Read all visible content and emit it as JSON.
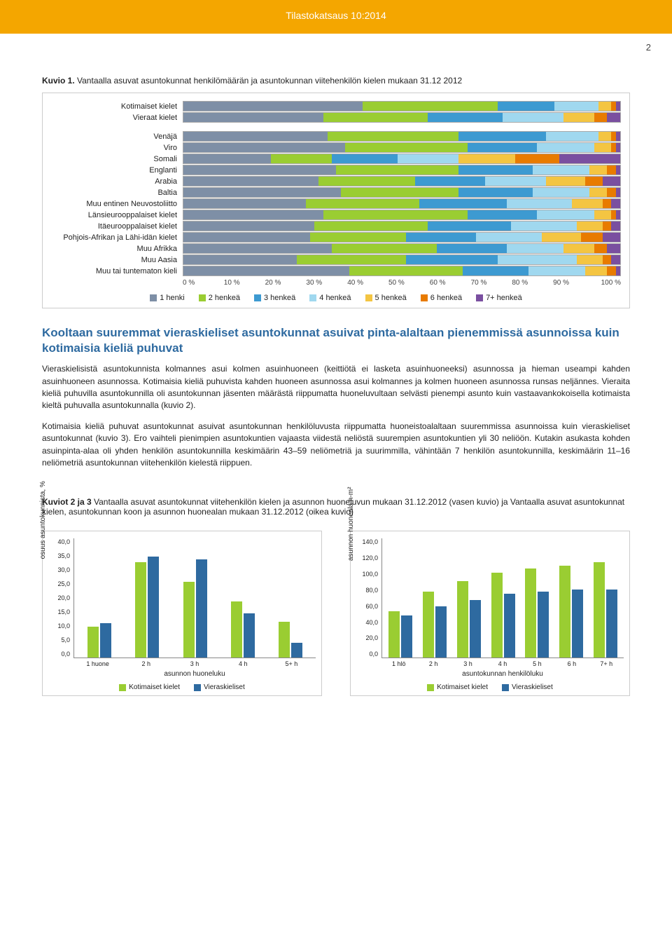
{
  "header": {
    "title": "Tilastokatsaus 10:2014",
    "page_number": "2"
  },
  "kuvio1": {
    "label": "Kuvio 1.",
    "caption": " Vantaalla asuvat asuntokunnat henkilömäärän ja asuntokunnan viitehenkilön kielen mukaan 31.12 2012",
    "legend": [
      "1 henki",
      "2 henkeä",
      "3 henkeä",
      "4 henkeä",
      "5 henkeä",
      "6 henkeä",
      "7+ henkeä"
    ],
    "legend_colors": [
      "#7e8fa6",
      "#9acd32",
      "#3d9ad1",
      "#a0d8ef",
      "#f4c542",
      "#e87b00",
      "#7a4fa0"
    ],
    "x_ticks": [
      "0 %",
      "10 %",
      "20 %",
      "30 %",
      "40 %",
      "50 %",
      "60 %",
      "70 %",
      "80 %",
      "90 %",
      "100 %"
    ],
    "rows": [
      {
        "label": "Kotimaiset kielet",
        "v": [
          41,
          31,
          13,
          10,
          3,
          1,
          1
        ]
      },
      {
        "label": "Vieraat kielet",
        "v": [
          32,
          24,
          17,
          14,
          7,
          3,
          3
        ]
      },
      {
        "gap": true
      },
      {
        "label": "Venäjä",
        "v": [
          33,
          30,
          20,
          12,
          3,
          1,
          1
        ]
      },
      {
        "label": "Viro",
        "v": [
          37,
          28,
          16,
          13,
          4,
          1,
          1
        ]
      },
      {
        "label": "Somali",
        "v": [
          20,
          14,
          15,
          14,
          13,
          10,
          14
        ]
      },
      {
        "label": "Englanti",
        "v": [
          35,
          28,
          17,
          13,
          4,
          2,
          1
        ]
      },
      {
        "label": "Arabia",
        "v": [
          31,
          22,
          16,
          14,
          9,
          4,
          4
        ]
      },
      {
        "label": "Baltia",
        "v": [
          36,
          27,
          17,
          13,
          4,
          2,
          1
        ]
      },
      {
        "label": "Muu entinen Neuvostoliitto",
        "v": [
          28,
          26,
          20,
          15,
          7,
          2,
          2
        ]
      },
      {
        "label": "Länsieurooppalaiset kielet",
        "v": [
          32,
          33,
          16,
          13,
          4,
          1,
          1
        ]
      },
      {
        "label": "Itäeurooppalaiset kielet",
        "v": [
          30,
          26,
          19,
          15,
          6,
          2,
          2
        ]
      },
      {
        "label": "Pohjois-Afrikan ja Lähi-idän kielet",
        "v": [
          29,
          22,
          16,
          15,
          9,
          5,
          4
        ]
      },
      {
        "label": "Muu Afrikka",
        "v": [
          34,
          24,
          16,
          13,
          7,
          3,
          3
        ]
      },
      {
        "label": "Muu Aasia",
        "v": [
          26,
          25,
          21,
          18,
          6,
          2,
          2
        ]
      },
      {
        "label": "Muu tai tuntematon kieli",
        "v": [
          38,
          26,
          15,
          13,
          5,
          2,
          1
        ]
      }
    ]
  },
  "section": {
    "title": "Kooltaan suuremmat vieraskieliset asuntokunnat asuivat pinta-alaltaan pienemmissä asunnoissa kuin kotimaisia kieliä puhuvat"
  },
  "para1": "Vieraskielisistä asuntokunnista kolmannes asui kolmen asuinhuoneen (keittiötä ei lasketa asuinhuoneeksi) asunnossa ja hieman useampi kahden asuinhuoneen asunnossa. Kotimaisia kieliä puhuvista kahden huoneen asunnossa asui kolmannes ja kolmen huoneen asunnossa runsas neljännes. Vieraita kieliä puhuvilla asuntokunnilla oli asuntokunnan jäsenten määrästä riippumatta huoneluvultaan selvästi pienempi asunto kuin vastaavankokoisella kotimaista kieltä puhuvalla asuntokunnalla (kuvio 2).",
  "para2": "Kotimaisia kieliä puhuvat asuntokunnat asuivat asuntokunnan henkilöluvusta riippumatta huoneistoalaltaan suuremmissa asunnoissa kuin vieraskieliset asuntokunnat (kuvio 3). Ero vaihteli pienimpien asuntokuntien vajaasta viidestä neliöstä suurempien asuntokuntien yli 30 neliöön. Kutakin asukasta kohden asuinpinta-alaa oli yhden henkilön asuntokunnilla keskimäärin 43–59 neliömetriä ja suurimmilla, vähintään 7 henkilön asuntokunnilla, keskimäärin 11–16 neliömetriä asuntokunnan viitehenkilön kielestä riippuen.",
  "kuvio23": {
    "label": "Kuviot 2 ja 3",
    "caption": " Vantaalla asuvat asuntokunnat viitehenkilön kielen ja asunnon huoneluvun mukaan 31.12.2012 (vasen kuvio) ja Vantaalla asuvat asuntokunnat kielen, asuntokunnan koon ja asunnon huonealan mukaan 31.12.2012 (oikea kuvio)"
  },
  "chart2": {
    "ylabel": "osuus asuntokunnista, %",
    "ymax": 40,
    "yticks": [
      "40,0",
      "35,0",
      "30,0",
      "25,0",
      "20,0",
      "15,0",
      "10,0",
      "5,0",
      "0,0"
    ],
    "xlabels": [
      "1 huone",
      "2 h",
      "3 h",
      "4 h",
      "5+ h"
    ],
    "xtitle": "asunnon huoneluku",
    "series": [
      {
        "name": "Kotimaiset kielet",
        "color": "#9acd32",
        "v": [
          10.5,
          32,
          25.5,
          19,
          12
        ]
      },
      {
        "name": "Vieraskieliset",
        "color": "#2e6aa0",
        "v": [
          11.5,
          34,
          33,
          15,
          5
        ]
      }
    ]
  },
  "chart3": {
    "ylabel": "asunnon huoneala h-m²",
    "ymax": 140,
    "yticks": [
      "140,0",
      "120,0",
      "100,0",
      "80,0",
      "60,0",
      "40,0",
      "20,0",
      "0,0"
    ],
    "xlabels": [
      "1 hlö",
      "2 h",
      "3 h",
      "4 h",
      "5 h",
      "6 h",
      "7+ h"
    ],
    "xtitle": "asuntokunnan henkilöluku",
    "series": [
      {
        "name": "Kotimaiset kielet",
        "color": "#9acd32",
        "v": [
          55,
          78,
          90,
          100,
          105,
          108,
          112
        ]
      },
      {
        "name": "Vieraskieliset",
        "color": "#2e6aa0",
        "v": [
          50,
          60,
          68,
          75,
          78,
          80,
          80
        ]
      }
    ]
  },
  "mini_legend": [
    "Kotimaiset kielet",
    "Vieraskieliset"
  ]
}
